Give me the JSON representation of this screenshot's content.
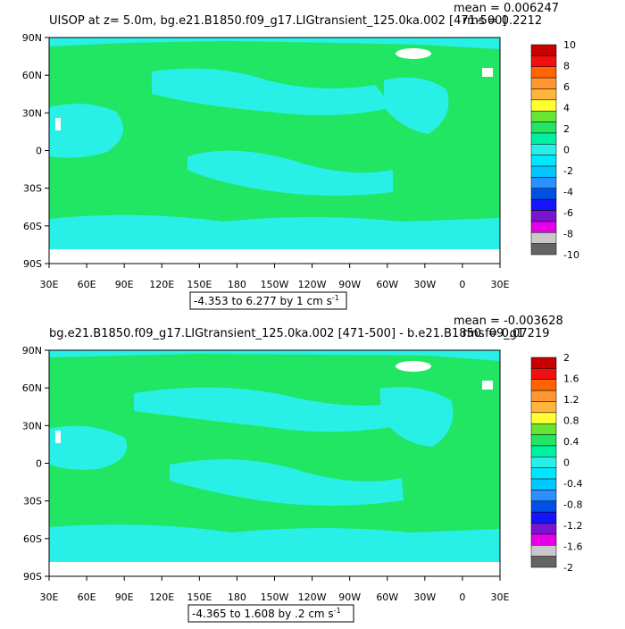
{
  "panels": [
    {
      "title": "UISOP at z=    5.0m, bg.e21.B1850.f09_g17.LIGtransient_125.0ka.002 [471-500]",
      "mean_text": "mean = 0.006247",
      "rms_text": "rms = 0.2212",
      "range_text": "-4.353 to 6.277 by 1 cm s",
      "range_superscript": "-1",
      "y_ticks": [
        "90N",
        "60N",
        "30N",
        "0",
        "30S",
        "60S",
        "90S"
      ],
      "x_ticks": [
        "30E",
        "60E",
        "90E",
        "120E",
        "150E",
        "180",
        "150W",
        "120W",
        "90W",
        "60W",
        "30W",
        "0",
        "30E"
      ],
      "colorbar_labels": [
        "10",
        "8",
        "6",
        "4",
        "2",
        "0",
        "-2",
        "-4",
        "-6",
        "-8",
        "-10"
      ],
      "colorbar_colors": [
        "#c80000",
        "#f01010",
        "#ff6400",
        "#ff9632",
        "#ffb43c",
        "#ffff32",
        "#64e632",
        "#20e664",
        "#00f0a0",
        "#28f0e6",
        "#00e6ff",
        "#00c8ff",
        "#2a90ff",
        "#0050e6",
        "#1414ff",
        "#7814d2",
        "#e600e6",
        "#c8c8c8",
        "#646464"
      ]
    },
    {
      "title": "bg.e21.B1850.f09_g17.LIGtransient_125.0ka.002 [471-500] - b.e21.B1850.f09_g1",
      "mean_text": "mean = -0.003628",
      "rms_text": "rms = 0.07219",
      "range_text": "-4.365 to 1.608 by .2 cm s",
      "range_superscript": "-1",
      "y_ticks": [
        "90N",
        "60N",
        "30N",
        "0",
        "30S",
        "60S",
        "90S"
      ],
      "x_ticks": [
        "30E",
        "60E",
        "90E",
        "120E",
        "150E",
        "180",
        "150W",
        "120W",
        "90W",
        "60W",
        "30W",
        "0",
        "30E"
      ],
      "colorbar_labels": [
        "2",
        "1.6",
        "1.2",
        "0.8",
        "0.4",
        "0",
        "-0.4",
        "-0.8",
        "-1.2",
        "-1.6",
        "-2"
      ],
      "colorbar_colors": [
        "#c80000",
        "#f01010",
        "#ff6400",
        "#ff9632",
        "#ffb43c",
        "#ffff32",
        "#64e632",
        "#20e664",
        "#00f0a0",
        "#28f0e6",
        "#00e6ff",
        "#00c8ff",
        "#2a90ff",
        "#0050e6",
        "#1414ff",
        "#7814d2",
        "#e600e6",
        "#c8c8c8",
        "#646464"
      ]
    }
  ],
  "field_colors": {
    "ocean_main": "#20e664",
    "ocean_alt": "#28f0e6",
    "land": "#ffffff"
  }
}
